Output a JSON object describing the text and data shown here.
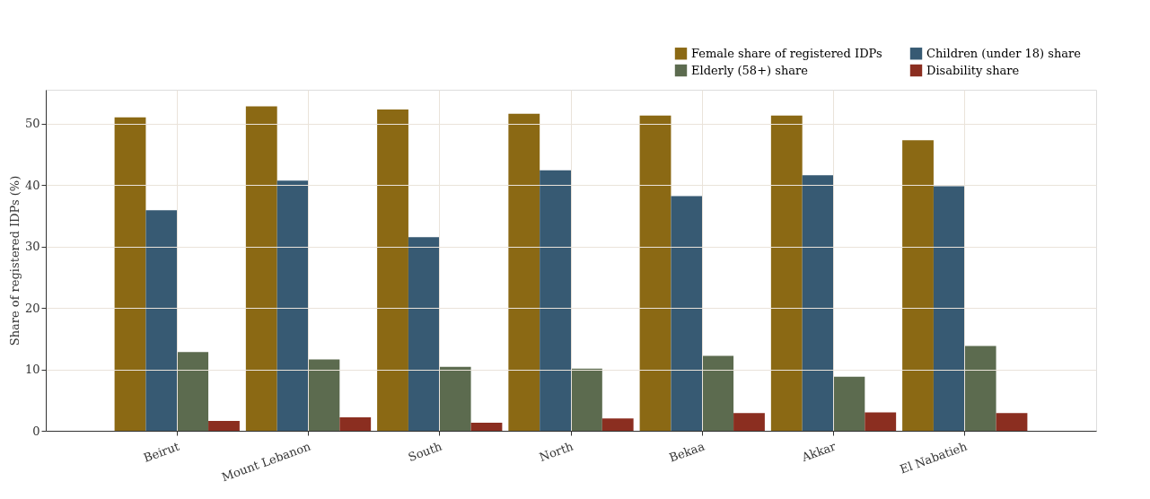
{
  "chart_data": {
    "type": "bar",
    "ylabel": "Share of registered IDPs (%)",
    "categories": [
      "Beirut",
      "Mount Lebanon",
      "South",
      "North",
      "Bekaa",
      "Akkar",
      "El Nabatieh"
    ],
    "series": [
      {
        "name": "Female share of registered IDPs",
        "color": "#8b6914",
        "values": [
          51.0,
          52.8,
          52.3,
          51.6,
          51.3,
          51.3,
          47.3
        ]
      },
      {
        "name": "Children (under 18) share",
        "color": "#375a73",
        "values": [
          35.9,
          40.7,
          31.5,
          42.4,
          38.2,
          41.6,
          39.8
        ]
      },
      {
        "name": "Elderly (58+) share",
        "color": "#5c6b4f",
        "values": [
          12.8,
          11.6,
          10.4,
          10.1,
          12.2,
          8.8,
          13.8
        ]
      },
      {
        "name": "Disability share",
        "color": "#8b2e20",
        "values": [
          1.6,
          2.2,
          1.3,
          2.0,
          2.9,
          3.0,
          2.9
        ]
      }
    ],
    "ylim": [
      0,
      55.5
    ],
    "yticks": [
      0,
      10,
      20,
      30,
      40,
      50
    ],
    "grid": true,
    "legend": "top right"
  }
}
